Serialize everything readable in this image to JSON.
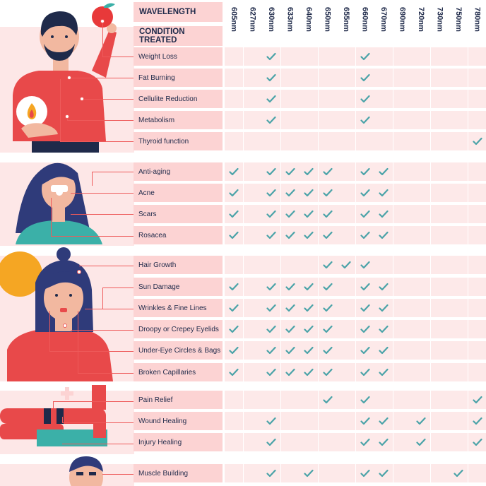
{
  "header": {
    "wavelength_label": "WAVELENGTH",
    "condition_label": "CONDITION TREATED"
  },
  "wavelengths": [
    "605nm",
    "627nm",
    "630nm",
    "633nm",
    "640nm",
    "650nm",
    "655nm",
    "660nm",
    "670nm",
    "690nm",
    "720nm",
    "730nm",
    "750nm",
    "780nm"
  ],
  "colors": {
    "accent": "#ee5a5a",
    "check": "#4aa3a8",
    "text": "#1f2a4a",
    "label_bg": "#fcd3d3",
    "cell_bg": "#fde9e9"
  },
  "groups": [
    {
      "name": "weight",
      "rows": [
        {
          "label": "Weight Loss",
          "checks": [
            "630nm",
            "660nm"
          ]
        },
        {
          "label": "Fat Burning",
          "checks": [
            "630nm",
            "660nm"
          ]
        },
        {
          "label": "Cellulite Reduction",
          "checks": [
            "630nm",
            "660nm"
          ]
        },
        {
          "label": "Metabolism",
          "checks": [
            "630nm",
            "660nm"
          ]
        },
        {
          "label": "Thyroid function",
          "checks": [
            "780nm"
          ]
        }
      ]
    },
    {
      "name": "skin",
      "rows": [
        {
          "label": "Anti-aging",
          "checks": [
            "605nm",
            "630nm",
            "633nm",
            "640nm",
            "650nm",
            "660nm",
            "670nm"
          ]
        },
        {
          "label": "Acne",
          "checks": [
            "605nm",
            "630nm",
            "633nm",
            "640nm",
            "650nm",
            "660nm",
            "670nm"
          ]
        },
        {
          "label": "Scars",
          "checks": [
            "605nm",
            "630nm",
            "633nm",
            "640nm",
            "650nm",
            "660nm",
            "670nm"
          ]
        },
        {
          "label": "Rosacea",
          "checks": [
            "605nm",
            "630nm",
            "633nm",
            "640nm",
            "650nm",
            "660nm",
            "670nm"
          ]
        }
      ]
    },
    {
      "name": "face",
      "rows": [
        {
          "label": "Hair Growth",
          "checks": [
            "650nm",
            "655nm",
            "660nm"
          ]
        },
        {
          "label": "Sun Damage",
          "checks": [
            "605nm",
            "630nm",
            "633nm",
            "640nm",
            "650nm",
            "660nm",
            "670nm"
          ]
        },
        {
          "label": "Wrinkles & Fine Lines",
          "checks": [
            "605nm",
            "630nm",
            "633nm",
            "640nm",
            "650nm",
            "660nm",
            "670nm"
          ]
        },
        {
          "label": "Droopy or Crepey Eyelids",
          "checks": [
            "605nm",
            "630nm",
            "633nm",
            "640nm",
            "650nm",
            "660nm",
            "670nm"
          ]
        },
        {
          "label": "Under-Eye Circles & Bags",
          "checks": [
            "605nm",
            "630nm",
            "633nm",
            "640nm",
            "650nm",
            "660nm",
            "670nm"
          ]
        },
        {
          "label": "Broken Capillaries",
          "checks": [
            "605nm",
            "630nm",
            "633nm",
            "640nm",
            "650nm",
            "660nm",
            "670nm"
          ]
        }
      ]
    },
    {
      "name": "injury",
      "rows": [
        {
          "label": "Pain Relief",
          "checks": [
            "650nm",
            "660nm",
            "780nm"
          ]
        },
        {
          "label": "Wound Healing",
          "checks": [
            "630nm",
            "660nm",
            "670nm",
            "720nm",
            "780nm"
          ]
        },
        {
          "label": "Injury Healing",
          "checks": [
            "630nm",
            "660nm",
            "670nm",
            "720nm",
            "780nm"
          ]
        }
      ]
    },
    {
      "name": "muscle",
      "rows": [
        {
          "label": "Muscle Building",
          "checks": [
            "630nm",
            "640nm",
            "660nm",
            "670nm",
            "750nm"
          ]
        }
      ]
    }
  ]
}
